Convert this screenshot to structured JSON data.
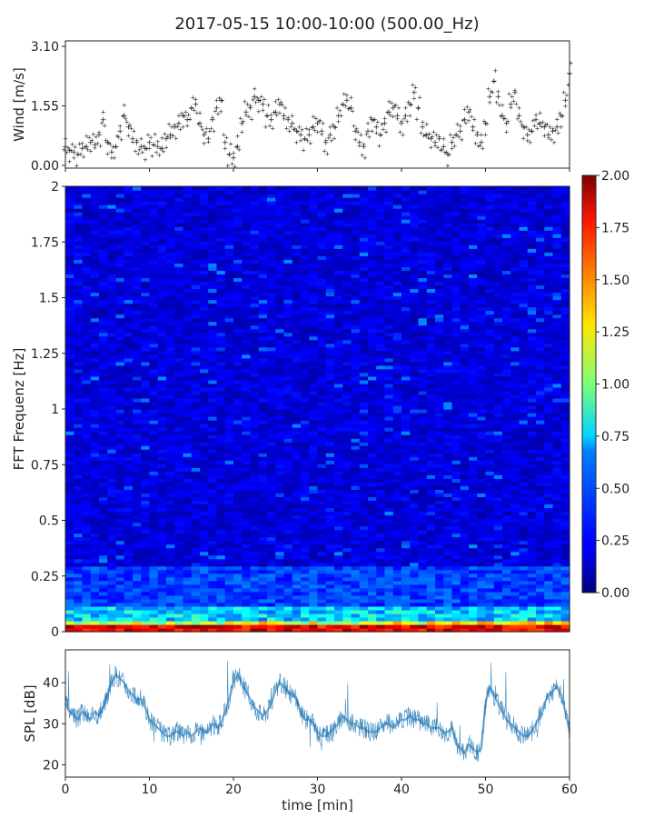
{
  "title": "2017-05-15 10:00-10:00 (500.00_Hz)",
  "chart_data": [
    {
      "type": "scatter",
      "panel": "wind",
      "ylabel": "Wind [m/s]",
      "xlim": [
        0,
        60
      ],
      "ylim": [
        0,
        3.1
      ],
      "yticks": [
        "0.00",
        "1.55",
        "3.10"
      ],
      "x": [
        0,
        0.5,
        1,
        1.5,
        2,
        2.5,
        3,
        3.5,
        4,
        4.5,
        5,
        5.5,
        6,
        6.5,
        7,
        7.5,
        8,
        8.5,
        9,
        9.5,
        10,
        10.5,
        11,
        11.5,
        12,
        12.5,
        13,
        13.5,
        14,
        14.5,
        15,
        15.5,
        16,
        16.5,
        17,
        17.5,
        18,
        18.5,
        19,
        19.5,
        20,
        20.5,
        21,
        21.5,
        22,
        22.5,
        23,
        23.5,
        24,
        24.5,
        25,
        25.5,
        26,
        26.5,
        27,
        27.5,
        28,
        28.5,
        29,
        29.5,
        30,
        30.5,
        31,
        31.5,
        32,
        32.5,
        33,
        33.5,
        34,
        34.5,
        35,
        35.5,
        36,
        36.5,
        37,
        37.5,
        38,
        38.5,
        39,
        39.5,
        40,
        40.5,
        41,
        41.5,
        42,
        42.5,
        43,
        43.5,
        44,
        44.5,
        45,
        45.5,
        46,
        46.5,
        47,
        47.5,
        48,
        48.5,
        49,
        49.5,
        50,
        50.5,
        51,
        51.5,
        52,
        52.5,
        53,
        53.5,
        54,
        54.5,
        55,
        55.5,
        56,
        56.5,
        57,
        57.5,
        58,
        58.5,
        59,
        59.5,
        60
      ],
      "y": [
        0.5,
        0.4,
        0.35,
        0.3,
        0.45,
        0.5,
        0.6,
        0.55,
        0.8,
        1.2,
        0.6,
        0.35,
        0.5,
        0.9,
        1.3,
        1.0,
        0.7,
        0.6,
        0.5,
        0.45,
        0.6,
        0.55,
        0.5,
        0.45,
        0.7,
        0.8,
        1.0,
        1.1,
        1.3,
        1.2,
        1.5,
        1.6,
        1.1,
        0.8,
        0.7,
        1.2,
        1.5,
        1.7,
        0.6,
        0.3,
        0.2,
        0.5,
        1.1,
        1.4,
        1.5,
        1.8,
        1.7,
        1.6,
        1.3,
        1.2,
        1.4,
        1.6,
        1.3,
        1.2,
        1.1,
        0.9,
        0.8,
        0.7,
        0.8,
        1.0,
        1.1,
        0.9,
        0.6,
        0.8,
        1.0,
        1.3,
        1.6,
        1.7,
        1.5,
        0.9,
        0.6,
        0.5,
        0.9,
        1.2,
        1.0,
        0.8,
        1.1,
        1.4,
        1.5,
        1.3,
        1.1,
        1.3,
        1.6,
        1.9,
        1.5,
        1.0,
        0.8,
        0.7,
        0.6,
        0.7,
        0.5,
        0.3,
        0.6,
        0.8,
        0.9,
        1.2,
        1.4,
        1.0,
        0.8,
        0.6,
        1.1,
        1.8,
        2.2,
        1.8,
        1.3,
        1.1,
        1.6,
        1.9,
        1.3,
        1.0,
        0.8,
        0.9,
        1.2,
        1.1,
        1.0,
        0.8,
        0.9,
        1.0,
        1.3,
        1.7,
        2.4
      ],
      "color": "#1f77b4"
    },
    {
      "type": "heatmap",
      "panel": "spectrogram",
      "ylabel": "FFT Frequenz [Hz]",
      "xlim": [
        0,
        60
      ],
      "ylim": [
        0,
        2
      ],
      "yticks": [
        "0",
        "0.25",
        "0.5",
        "0.75",
        "1",
        "1.25",
        "1.5",
        "1.75",
        "2"
      ],
      "colorbar": {
        "min": 0,
        "max": 2,
        "colormap": "jet",
        "ticks": [
          "0.00",
          "0.25",
          "0.50",
          "0.75",
          "1.00",
          "1.25",
          "1.50",
          "1.75",
          "2.00"
        ]
      }
    },
    {
      "type": "line",
      "panel": "spl",
      "ylabel": "SPL [dB]",
      "xlabel": "time [min]",
      "xlim": [
        0,
        60
      ],
      "ylim": [
        17,
        48
      ],
      "yticks": [
        "20",
        "30",
        "40"
      ],
      "xticks": [
        "0",
        "10",
        "20",
        "30",
        "40",
        "50",
        "60"
      ],
      "x": [
        0,
        0.5,
        1,
        1.5,
        2,
        2.5,
        3,
        3.5,
        4,
        4.5,
        5,
        5.5,
        6,
        6.5,
        7,
        7.5,
        8,
        8.5,
        9,
        9.5,
        10,
        10.5,
        11,
        11.5,
        12,
        12.5,
        13,
        13.5,
        14,
        14.5,
        15,
        15.5,
        16,
        16.5,
        17,
        17.5,
        18,
        18.5,
        19,
        19.5,
        20,
        20.5,
        21,
        21.5,
        22,
        22.5,
        23,
        23.5,
        24,
        24.5,
        25,
        25.5,
        26,
        26.5,
        27,
        27.5,
        28,
        28.5,
        29,
        29.5,
        30,
        30.5,
        31,
        31.5,
        32,
        32.5,
        33,
        33.5,
        34,
        34.5,
        35,
        35.5,
        36,
        36.5,
        37,
        37.5,
        38,
        38.5,
        39,
        39.5,
        40,
        40.5,
        41,
        41.5,
        42,
        42.5,
        43,
        43.5,
        44,
        44.5,
        45,
        45.5,
        46,
        46.5,
        47,
        47.5,
        48,
        48.5,
        49,
        49.5,
        50,
        50.5,
        51,
        51.5,
        52,
        52.5,
        53,
        53.5,
        54,
        54.5,
        55,
        55.5,
        56,
        56.5,
        57,
        57.5,
        58,
        58.5,
        59,
        59.5,
        60
      ],
      "y": [
        35,
        33,
        32,
        31,
        33,
        32,
        31,
        33,
        32,
        34,
        37,
        40,
        42,
        41,
        40,
        38,
        37,
        36,
        36,
        34,
        31,
        30,
        29,
        28,
        27,
        27,
        28,
        28,
        27,
        28,
        27,
        28,
        29,
        28,
        28,
        30,
        29,
        30,
        33,
        36,
        40,
        42,
        40,
        38,
        36,
        34,
        33,
        32,
        33,
        35,
        38,
        40,
        39,
        38,
        37,
        36,
        33,
        31,
        31,
        30,
        28,
        27,
        27,
        28,
        29,
        30,
        32,
        31,
        30,
        30,
        29,
        29,
        28,
        28,
        28,
        29,
        30,
        30,
        29,
        30,
        31,
        31,
        32,
        31,
        31,
        30,
        30,
        29,
        29,
        29,
        28,
        28,
        29,
        25,
        24,
        23,
        25,
        24,
        23,
        24,
        35,
        39,
        37,
        35,
        33,
        31,
        30,
        29,
        28,
        27,
        27,
        28,
        30,
        32,
        35,
        37,
        38,
        39,
        37,
        33,
        28
      ],
      "color": "#1f77b4"
    }
  ]
}
